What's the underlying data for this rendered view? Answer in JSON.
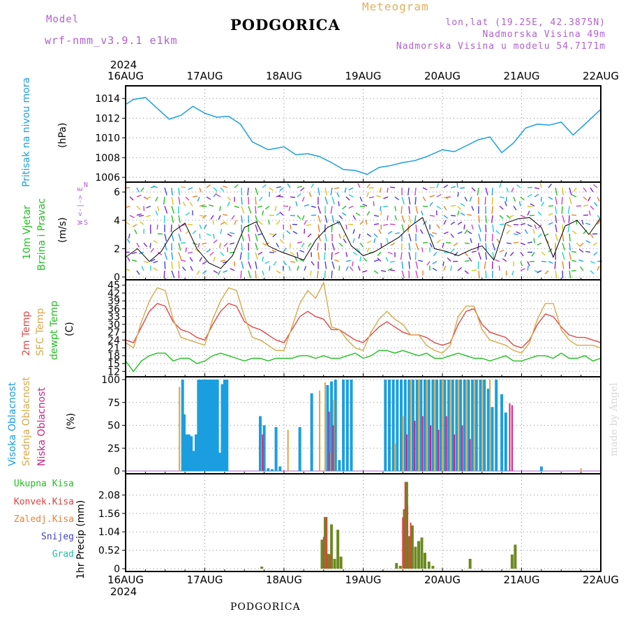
{
  "header": {
    "model_label": "Model",
    "model_name": "wrf-nmm_v3.9.1 e1km",
    "title": "PODGORICA",
    "meteogram": "Meteogram",
    "lonlat": "lon,lat (19.25E, 42.3875N)",
    "altitude": "Nadmorska Visina 49m",
    "model_altitude": "Nadmorska Visina u modelu 54.7171m",
    "footer": "PODGORICA",
    "credit": "made by Angel"
  },
  "colors": {
    "model": "#b060d0",
    "meteogram": "#e0b060",
    "lonlat": "#b060d0",
    "pressure": "#1a9ee0",
    "wind": "#20c020",
    "temp2m": "#e04848",
    "sfc": "#d8a848",
    "dewpt": "#20c020",
    "high_cloud": "#1a9ee0",
    "mid_cloud": "#d8a848",
    "low_cloud": "#d02080",
    "precip_total": "#6a8a20",
    "precip_conv": "#e04040",
    "precip_frozen": "#f08030",
    "snow": "#4040d0",
    "grad": "#20c0a0",
    "credit": "#d8d8d8"
  },
  "chart_data": [
    {
      "type": "line",
      "name": "pressure",
      "ylabel_a": "Pritisak na nivou mora",
      "ylabel_b": "(hPa)",
      "ylim": [
        1005.8,
        1015
      ],
      "yticks": [
        1006,
        1008,
        1010,
        1012,
        1014
      ],
      "x_dates": [
        "16AUG",
        "17AUG",
        "18AUG",
        "19AUG",
        "20AUG",
        "21AUG",
        "22AUG"
      ],
      "year": "2024",
      "grid": true,
      "x_days": [
        0.0,
        0.1,
        0.25,
        0.4,
        0.55,
        0.7,
        0.85,
        1.0,
        1.15,
        1.3,
        1.45,
        1.6,
        1.8,
        2.0,
        2.15,
        2.3,
        2.45,
        2.6,
        2.75,
        2.9,
        3.05,
        3.2,
        3.35,
        3.5,
        3.65,
        3.8,
        4.0,
        4.15,
        4.3,
        4.45,
        4.6,
        4.75,
        4.9,
        5.05,
        5.2,
        5.35,
        5.5,
        5.65,
        5.8,
        6.0
      ],
      "values": [
        1013.4,
        1013.9,
        1014.1,
        1013.0,
        1011.9,
        1012.3,
        1013.2,
        1012.5,
        1012.1,
        1012.2,
        1011.4,
        1009.6,
        1008.8,
        1009.1,
        1008.3,
        1008.4,
        1008.1,
        1007.5,
        1006.8,
        1006.7,
        1006.3,
        1007.0,
        1007.2,
        1007.5,
        1007.7,
        1008.1,
        1008.8,
        1008.6,
        1009.2,
        1009.8,
        1010.1,
        1008.5,
        1009.5,
        1011.0,
        1011.4,
        1011.3,
        1011.6,
        1010.3,
        1011.4,
        1012.9
      ]
    },
    {
      "type": "line",
      "name": "wind",
      "ylabel_a": "10m Vjetar",
      "ylabel_b": "Brzina i Pravac",
      "ylabel_c": "(m/s)",
      "compass": "W <-|-> E",
      "compass_n": "N",
      "compass_s": "S",
      "ylim": [
        0,
        6.5
      ],
      "yticks": [
        0,
        2,
        4,
        6
      ],
      "x_days": [
        0.0,
        0.15,
        0.3,
        0.45,
        0.6,
        0.75,
        0.9,
        1.05,
        1.2,
        1.35,
        1.5,
        1.65,
        1.8,
        1.95,
        2.1,
        2.25,
        2.4,
        2.55,
        2.7,
        2.85,
        3.0,
        3.15,
        3.3,
        3.45,
        3.6,
        3.75,
        3.9,
        4.05,
        4.2,
        4.35,
        4.5,
        4.65,
        4.8,
        4.95,
        5.1,
        5.25,
        5.4,
        5.55,
        5.7,
        5.85,
        6.0
      ],
      "values": [
        1.4,
        2.0,
        1.1,
        1.8,
        3.2,
        3.8,
        2.0,
        1.0,
        0.6,
        1.5,
        3.5,
        3.9,
        2.2,
        1.8,
        1.5,
        1.2,
        2.6,
        3.5,
        3.9,
        2.2,
        1.5,
        1.8,
        2.3,
        2.8,
        3.6,
        4.2,
        2.0,
        1.8,
        1.5,
        1.9,
        2.2,
        1.2,
        3.8,
        4.1,
        4.2,
        3.5,
        1.4,
        3.6,
        4.0,
        3.0,
        4.2
      ]
    },
    {
      "type": "line",
      "name": "temperature",
      "ylabel_a": "2m Temp",
      "ylabel_b": "SFC Temp",
      "ylabel_c": "dewpt Temp",
      "ylabel_d": "(C)",
      "ylim": [
        11,
        46
      ],
      "yticks": [
        12,
        15,
        18,
        21,
        24,
        27,
        30,
        33,
        36,
        39,
        42,
        45
      ],
      "x_days": [
        0.0,
        0.1,
        0.2,
        0.3,
        0.4,
        0.5,
        0.6,
        0.7,
        0.8,
        0.9,
        1.0,
        1.1,
        1.2,
        1.3,
        1.4,
        1.5,
        1.6,
        1.7,
        1.8,
        1.9,
        2.0,
        2.1,
        2.2,
        2.3,
        2.4,
        2.5,
        2.6,
        2.7,
        2.8,
        2.9,
        3.0,
        3.1,
        3.2,
        3.3,
        3.4,
        3.5,
        3.6,
        3.7,
        3.8,
        3.9,
        4.0,
        4.1,
        4.2,
        4.3,
        4.4,
        4.5,
        4.6,
        4.7,
        4.8,
        4.9,
        5.0,
        5.1,
        5.2,
        5.3,
        5.4,
        5.5,
        5.6,
        5.7,
        5.8,
        5.9,
        6.0
      ],
      "series": [
        {
          "name": "2m Temp",
          "values": [
            24,
            23,
            29,
            35,
            38,
            37,
            31,
            28,
            27,
            25,
            24,
            30,
            35,
            38,
            37,
            31,
            29,
            28,
            26,
            24,
            23,
            28,
            33,
            35,
            33,
            32,
            28,
            28,
            26,
            24,
            23,
            26,
            29,
            31,
            29,
            27,
            26,
            26,
            25,
            23,
            22,
            23,
            30,
            35,
            36,
            30,
            27,
            26,
            25,
            22,
            21,
            24,
            30,
            34,
            33,
            29,
            26,
            25,
            25,
            24,
            23
          ]
        },
        {
          "name": "SFC Temp",
          "values": [
            23,
            21,
            31,
            39,
            44,
            43,
            32,
            25,
            24,
            23,
            22,
            32,
            39,
            44,
            43,
            33,
            25,
            24,
            22,
            20,
            20,
            29,
            38,
            43,
            40,
            46,
            29,
            28,
            24,
            21,
            20,
            27,
            32,
            35,
            32,
            30,
            26,
            26,
            22,
            20,
            19,
            22,
            33,
            37,
            37,
            28,
            24,
            23,
            22,
            20,
            19,
            23,
            32,
            38,
            38,
            28,
            24,
            22,
            22,
            22,
            21
          ]
        },
        {
          "name": "dewpt Temp",
          "values": [
            16,
            12,
            16,
            18,
            19,
            19,
            16,
            17,
            17,
            15,
            16,
            18,
            19,
            18,
            17,
            16,
            17,
            17,
            16,
            17,
            17,
            17,
            18,
            18,
            17,
            18,
            17,
            17,
            18,
            19,
            17,
            18,
            20,
            20,
            19,
            20,
            19,
            18,
            19,
            17,
            17,
            18,
            19,
            18,
            17,
            17,
            16,
            17,
            18,
            16,
            16,
            17,
            18,
            18,
            17,
            19,
            17,
            17,
            18,
            16,
            17
          ]
        }
      ]
    },
    {
      "type": "bar",
      "name": "cloud",
      "ylabel_a": "Visoka Oblacnost",
      "ylabel_b": "Srednja Oblacnost",
      "ylabel_c": "Niska Oblacnost",
      "ylabel_d": "(%)",
      "ylim": [
        0,
        100
      ],
      "yticks": [
        0,
        25,
        50,
        75,
        100
      ],
      "series": [
        {
          "name": "Visoka Oblacnost",
          "x_days": [
            0.72,
            0.74,
            0.77,
            0.8,
            0.83,
            0.86,
            0.89,
            0.92,
            0.95,
            0.98,
            1.01,
            1.04,
            1.07,
            1.1,
            1.13,
            1.16,
            1.19,
            1.22,
            1.25,
            1.28,
            1.7,
            1.75,
            1.8,
            1.85,
            1.9,
            1.95,
            2.2,
            2.35,
            2.55,
            2.6,
            2.65,
            2.7,
            2.75,
            2.8,
            2.85,
            3.28,
            3.33,
            3.38,
            3.43,
            3.48,
            3.53,
            3.58,
            3.63,
            3.68,
            3.73,
            3.78,
            3.83,
            3.88,
            3.93,
            3.98,
            4.03,
            4.08,
            4.13,
            4.18,
            4.23,
            4.28,
            4.33,
            4.38,
            4.43,
            4.48,
            4.53,
            4.58,
            4.63,
            4.68,
            4.75,
            4.8,
            5.25
          ],
          "values": [
            100,
            62,
            40,
            40,
            38,
            22,
            40,
            100,
            100,
            100,
            100,
            100,
            100,
            100,
            100,
            100,
            20,
            95,
            100,
            100,
            60,
            50,
            3,
            2,
            48,
            5,
            48,
            85,
            94,
            98,
            100,
            12,
            100,
            100,
            100,
            100,
            100,
            100,
            100,
            100,
            100,
            100,
            100,
            100,
            100,
            100,
            100,
            100,
            100,
            100,
            100,
            100,
            100,
            100,
            100,
            100,
            100,
            100,
            100,
            100,
            100,
            90,
            70,
            100,
            84,
            64,
            5
          ]
        },
        {
          "name": "Srednja Oblacnost",
          "x_days": [
            0.68,
            1.72,
            2.05,
            2.45,
            2.52,
            2.58,
            2.63,
            3.4,
            3.5,
            3.6,
            3.7,
            3.8,
            3.9,
            4.0,
            4.1,
            4.2,
            4.3,
            4.4,
            4.5,
            4.6,
            5.75
          ],
          "values": [
            92,
            35,
            45,
            88,
            97,
            20,
            78,
            30,
            60,
            100,
            100,
            100,
            100,
            100,
            100,
            100,
            100,
            100,
            100,
            100,
            3
          ]
        },
        {
          "name": "Niska Oblacnost",
          "x_days": [
            1.73,
            2.57,
            2.62,
            3.55,
            3.65,
            3.75,
            3.85,
            3.95,
            4.05,
            4.15,
            4.25,
            4.35,
            4.85,
            4.88
          ],
          "values": [
            40,
            65,
            50,
            40,
            55,
            60,
            50,
            45,
            60,
            40,
            50,
            35,
            74,
            72
          ]
        }
      ]
    },
    {
      "type": "bar",
      "name": "precip",
      "ylabel_a": "1hr Precip (mm)",
      "ylim": [
        0,
        2.6
      ],
      "yticks": [
        0,
        0.52,
        1.04,
        1.56,
        2.08
      ],
      "ytick_labels": [
        "0",
        "0.52",
        "1.04",
        "1.56",
        "2.08"
      ],
      "legend": [
        "Ukupna Kisa",
        "Konvek.Kisa",
        "Zaledj.Kisa",
        "Snijeg",
        "Grad"
      ],
      "series": [
        {
          "name": "Ukupna Kisa",
          "x_days": [
            1.72,
            2.48,
            2.52,
            2.56,
            2.6,
            2.64,
            2.68,
            2.72,
            3.42,
            3.47,
            3.52,
            3.55,
            3.58,
            3.62,
            3.66,
            3.7,
            3.74,
            3.78,
            3.83,
            3.88,
            4.35,
            4.88,
            4.92
          ],
          "values": [
            0.06,
            0.82,
            1.46,
            0.42,
            1.25,
            0.28,
            1.1,
            0.34,
            0.16,
            0.08,
            1.68,
            2.45,
            0.92,
            1.22,
            0.62,
            0.78,
            0.88,
            0.45,
            0.2,
            0.08,
            0.28,
            0.4,
            0.68
          ]
        },
        {
          "name": "Konvek.Kisa",
          "x_days": [
            2.5,
            2.54,
            2.58,
            3.5,
            3.53,
            3.56,
            3.6
          ],
          "values": [
            0.9,
            1.46,
            0.4,
            1.45,
            2.45,
            1.8,
            1.3
          ]
        }
      ]
    }
  ]
}
